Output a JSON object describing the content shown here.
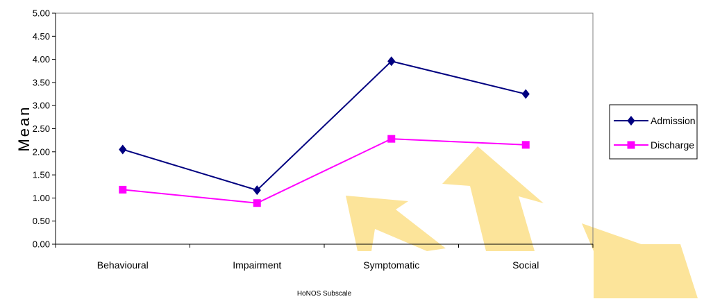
{
  "chart_data": {
    "type": "line",
    "categories": [
      "Behavioural",
      "Impairment",
      "Symptomatic",
      "Social"
    ],
    "series": [
      {
        "name": "Admission",
        "values": [
          2.05,
          1.17,
          3.96,
          3.25
        ],
        "color": "#000080",
        "marker": "diamond"
      },
      {
        "name": "Discharge",
        "values": [
          1.18,
          0.89,
          2.28,
          2.15
        ],
        "color": "#ff00ff",
        "marker": "square"
      }
    ],
    "xlabel": "HoNOS Subscale",
    "ylabel": "Mean",
    "ylim": [
      0,
      5
    ],
    "yticks": [
      "0.00",
      "0.50",
      "1.00",
      "1.50",
      "2.00",
      "2.50",
      "3.00",
      "3.50",
      "4.00",
      "4.50",
      "5.00"
    ],
    "grid": false,
    "legend_position": "right",
    "decorations": {
      "arrow_color": "#fce49a"
    }
  }
}
